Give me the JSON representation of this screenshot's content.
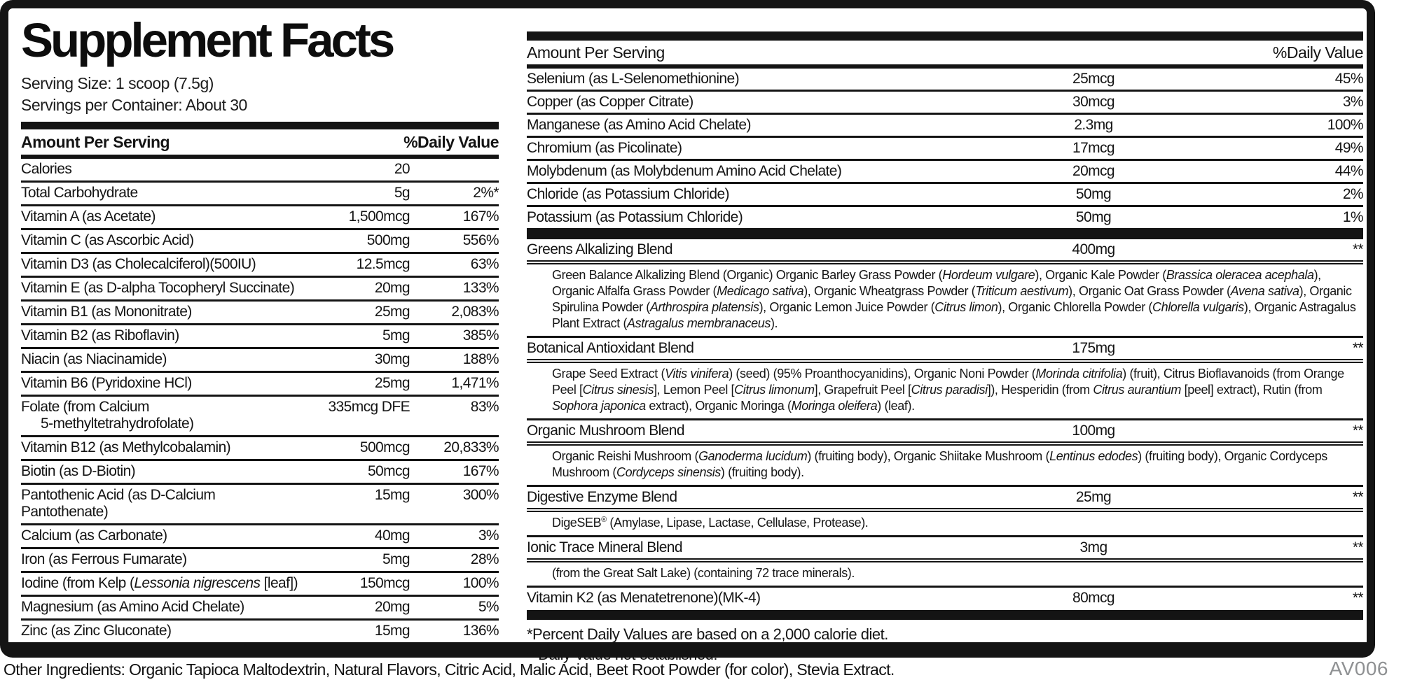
{
  "label": {
    "title": "Supplement Facts",
    "serving_size": "Serving Size: 1 scoop (7.5g)",
    "servings_per_container": "Servings per Container: About 30",
    "other_ingredients": "Other Ingredients: Organic Tapioca Maltodextrin, Natural Flavors, Citric Acid, Malic Acid, Beet Root Powder (for color), Stevia Extract.",
    "code": "AV006",
    "footnotes": {
      "percent_dv": "*Percent Daily Values are based on a 2,000 calorie diet.",
      "not_established": "**Daily Value not established."
    },
    "ink_color": "#141414",
    "code_color": "#8f9193"
  },
  "left_table": {
    "amount_header": "Amount Per Serving",
    "dv_header": "%Daily Value",
    "rows": [
      {
        "name": "Calories",
        "amount": "20",
        "dv": ""
      },
      {
        "name": "Total Carbohydrate",
        "amount": "5g",
        "dv": "2%*"
      },
      {
        "name": "Vitamin A (as Acetate)",
        "amount": "1,500mcg",
        "dv": "167%"
      },
      {
        "name": "Vitamin C (as Ascorbic Acid)",
        "amount": "500mg",
        "dv": "556%"
      },
      {
        "name": "Vitamin D3 (as Cholecalciferol)(500IU)",
        "amount": "12.5mcg",
        "dv": "63%"
      },
      {
        "name": "Vitamin E (as D-alpha Tocopheryl Succinate)",
        "amount": "20mg",
        "dv": "133%"
      },
      {
        "name": "Vitamin B1 (as Mononitrate)",
        "amount": "25mg",
        "dv": "2,083%"
      },
      {
        "name": "Vitamin B2 (as Riboflavin)",
        "amount": "5mg",
        "dv": "385%"
      },
      {
        "name": "Niacin (as Niacinamide)",
        "amount": "30mg",
        "dv": "188%"
      },
      {
        "name": "Vitamin B6 (Pyridoxine HCl)",
        "amount": "25mg",
        "dv": "1,471%"
      },
      {
        "name": "Folate (from Calcium",
        "name2": "5-methyltetrahydrofolate)",
        "amount": "335mcg DFE",
        "dv": "83%"
      },
      {
        "name": "Vitamin B12 (as Methylcobalamin)",
        "amount": "500mcg",
        "dv": "20,833%"
      },
      {
        "name": "Biotin (as D-Biotin)",
        "amount": "50mcg",
        "dv": "167%"
      },
      {
        "name": "Pantothenic Acid (as D-Calcium Pantothenate)",
        "amount": "15mg",
        "dv": "300%"
      },
      {
        "name": "Calcium (as Carbonate)",
        "amount": "40mg",
        "dv": "3%"
      },
      {
        "name": "Iron (as Ferrous Fumarate)",
        "amount": "5mg",
        "dv": "28%"
      },
      {
        "name": [
          {
            "t": "Iodine (from Kelp ("
          },
          {
            "t": "Lessonia nigrescens",
            "s": "i"
          },
          {
            "t": " [leaf])"
          }
        ],
        "amount": "150mcg",
        "dv": "100%"
      },
      {
        "name": "Magnesium (as Amino Acid Chelate)",
        "amount": "20mg",
        "dv": "5%"
      },
      {
        "name": "Zinc (as Zinc Gluconate)",
        "amount": "15mg",
        "dv": "136%"
      }
    ]
  },
  "right_table": {
    "amount_header": "Amount Per Serving",
    "dv_header": "%Daily Value",
    "rows": [
      {
        "name": "Selenium (as L-Selenomethionine)",
        "amount": "25mcg",
        "dv": "45%"
      },
      {
        "name": "Copper (as Copper Citrate)",
        "amount": "30mcg",
        "dv": "3%"
      },
      {
        "name": "Manganese (as Amino Acid Chelate)",
        "amount": "2.3mg",
        "dv": "100%"
      },
      {
        "name": "Chromium (as Picolinate)",
        "amount": "17mcg",
        "dv": "49%"
      },
      {
        "name": "Molybdenum (as Molybdenum Amino Acid Chelate)",
        "amount": "20mcg",
        "dv": "44%"
      },
      {
        "name": "Chloride (as Potassium Chloride)",
        "amount": "50mg",
        "dv": "2%"
      },
      {
        "name": "Potassium (as Potassium Chloride)",
        "amount": "50mg",
        "dv": "1%"
      }
    ],
    "blends": [
      {
        "name": "Greens Alkalizing Blend",
        "amount": "400mg",
        "dv": "**",
        "desc": [
          {
            "t": "Green Balance Alkalizing Blend (Organic) Organic Barley Grass Powder ("
          },
          {
            "t": "Hordeum vulgare",
            "s": "i"
          },
          {
            "t": "), Organic Kale Powder ("
          },
          {
            "t": "Brassica oleracea acephala",
            "s": "i"
          },
          {
            "t": "), Organic Alfalfa Grass Powder ("
          },
          {
            "t": "Medicago sativa",
            "s": "i"
          },
          {
            "t": "), Organic Wheatgrass Powder ("
          },
          {
            "t": "Triticum aestivum",
            "s": "i"
          },
          {
            "t": "), Organic Oat Grass Powder ("
          },
          {
            "t": "Avena sativa",
            "s": "i"
          },
          {
            "t": "), Organic Spirulina Powder ("
          },
          {
            "t": "Arthrospira platensis",
            "s": "i"
          },
          {
            "t": "), Organic Lemon Juice Powder ("
          },
          {
            "t": "Citrus limon",
            "s": "i"
          },
          {
            "t": "), Organic Chlorella Powder ("
          },
          {
            "t": "Chlorella vulgaris",
            "s": "i"
          },
          {
            "t": "), Organic Astragalus Plant Extract ("
          },
          {
            "t": "Astragalus membranaceus",
            "s": "i"
          },
          {
            "t": ")."
          }
        ]
      },
      {
        "name": "Botanical Antioxidant Blend",
        "amount": "175mg",
        "dv": "**",
        "desc": [
          {
            "t": "Grape Seed Extract ("
          },
          {
            "t": "Vitis vinifera",
            "s": "i"
          },
          {
            "t": ") (seed) (95% Proanthocyanidins), Organic Noni Powder ("
          },
          {
            "t": "Morinda citrifolia",
            "s": "i"
          },
          {
            "t": ") (fruit), Citrus Bioflavanoids (from Orange Peel ["
          },
          {
            "t": "Citrus sinesis",
            "s": "i"
          },
          {
            "t": "], Lemon Peel ["
          },
          {
            "t": "Citrus limonum",
            "s": "i"
          },
          {
            "t": "], Grapefruit Peel ["
          },
          {
            "t": "Citrus paradisi",
            "s": "i"
          },
          {
            "t": "]), Hesperidin (from "
          },
          {
            "t": "Citrus aurantium",
            "s": "i"
          },
          {
            "t": " [peel] extract), Rutin (from "
          },
          {
            "t": "Sophora japonica",
            "s": "i"
          },
          {
            "t": " extract), Organic Moringa ("
          },
          {
            "t": "Moringa oleifera",
            "s": "i"
          },
          {
            "t": ") (leaf)."
          }
        ]
      },
      {
        "name": "Organic Mushroom Blend",
        "amount": "100mg",
        "dv": "**",
        "desc": [
          {
            "t": "Organic Reishi Mushroom ("
          },
          {
            "t": "Ganoderma lucidum",
            "s": "i"
          },
          {
            "t": ") (fruiting body), Organic Shiitake Mushroom ("
          },
          {
            "t": "Lentinus edodes",
            "s": "i"
          },
          {
            "t": ") (fruiting body), Organic Cordyceps Mushroom ("
          },
          {
            "t": "Cordyceps sinensis",
            "s": "i"
          },
          {
            "t": ") (fruiting body)."
          }
        ]
      },
      {
        "name": "Digestive Enzyme Blend",
        "amount": "25mg",
        "dv": "**",
        "desc": [
          {
            "t": "DigeSEB"
          },
          {
            "t": "®",
            "s": "sup"
          },
          {
            "t": " (Amylase, Lipase, Lactase, Cellulase, Protease)."
          }
        ]
      },
      {
        "name": "Ionic Trace Mineral Blend",
        "amount": "3mg",
        "dv": "**",
        "desc": [
          {
            "t": "(from the Great Salt Lake) (containing 72 trace minerals)."
          }
        ]
      },
      {
        "name": "Vitamin K2 (as Menatetrenone)(MK-4)",
        "amount": "80mcg",
        "dv": "**"
      }
    ]
  }
}
